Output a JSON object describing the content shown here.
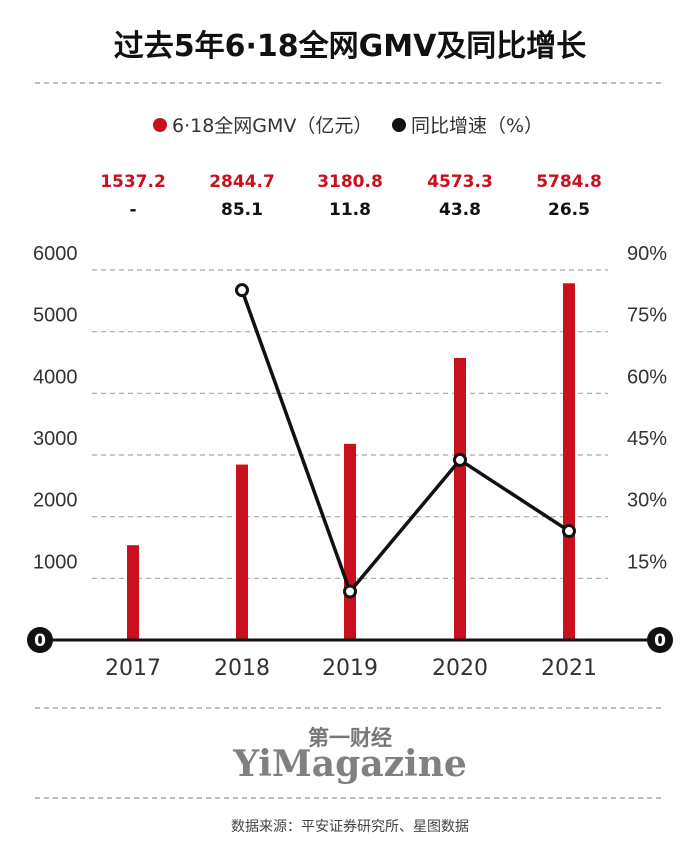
{
  "chart_data": {
    "type": "bar+line",
    "title": "过去5年6·18全网GMV及同比增长",
    "categories": [
      "2017",
      "2018",
      "2019",
      "2020",
      "2021"
    ],
    "series": [
      {
        "name": "6·18全网GMV（亿元）",
        "type": "bar",
        "axis": "left",
        "color": "#c8101e",
        "values": [
          1537.2,
          2844.7,
          3180.8,
          4573.3,
          5784.8
        ],
        "labels": [
          "1537.2",
          "2844.7",
          "3180.8",
          "4573.3",
          "5784.8"
        ]
      },
      {
        "name": "同比增速（%）",
        "type": "line",
        "axis": "right",
        "color": "#111111",
        "values": [
          null,
          85.1,
          11.8,
          43.8,
          26.5
        ],
        "labels": [
          "-",
          "85.1",
          "11.8",
          "43.8",
          "26.5"
        ]
      }
    ],
    "y_left": {
      "ylim": [
        0,
        6000
      ],
      "ticks": [
        "1000",
        "2000",
        "3000",
        "4000",
        "5000",
        "6000"
      ],
      "tick_values": [
        1000,
        2000,
        3000,
        4000,
        5000,
        6000
      ]
    },
    "y_right": {
      "ylim": [
        0,
        90
      ],
      "ticks": [
        "15%",
        "30%",
        "45%",
        "60%",
        "75%",
        "90%"
      ],
      "tick_values": [
        15,
        30,
        45,
        60,
        75,
        90
      ]
    },
    "zero_label": "0",
    "legend_position": "top-center",
    "grid": "dashed-horizontal"
  },
  "footer": {
    "brand_cn": "第一财经",
    "brand_en": "YiMagazine",
    "source": "数据来源：平安证券研究所、星图数据"
  }
}
